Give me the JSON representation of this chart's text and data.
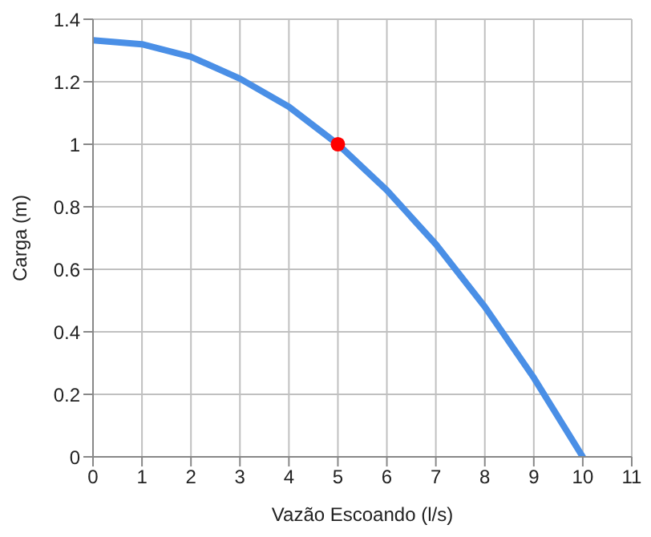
{
  "chart_data": {
    "type": "line",
    "xlabel": "Vazão Escoando (l/s)",
    "ylabel": "Carga (m)",
    "xlim": [
      0,
      11
    ],
    "xticks": [
      0,
      1,
      2,
      3,
      4,
      5,
      6,
      7,
      8,
      9,
      10,
      11
    ],
    "ylim": [
      0,
      1.4
    ],
    "yticks": [
      0,
      0.2,
      0.4,
      0.6,
      0.8,
      1,
      1.2,
      1.4
    ],
    "grid": true,
    "legend": false,
    "series": [
      {
        "color": "#4a8fe6",
        "marker": "none",
        "x": [
          0,
          1,
          2,
          3,
          4,
          5,
          6,
          7,
          8,
          9,
          10
        ],
        "values": [
          1.333,
          1.32,
          1.28,
          1.21,
          1.12,
          1.0,
          0.853,
          0.68,
          0.48,
          0.253,
          0
        ]
      },
      {
        "type": "scatter",
        "color": "#ff0000",
        "marker": "circle",
        "x": [
          5
        ],
        "values": [
          1
        ]
      }
    ]
  }
}
